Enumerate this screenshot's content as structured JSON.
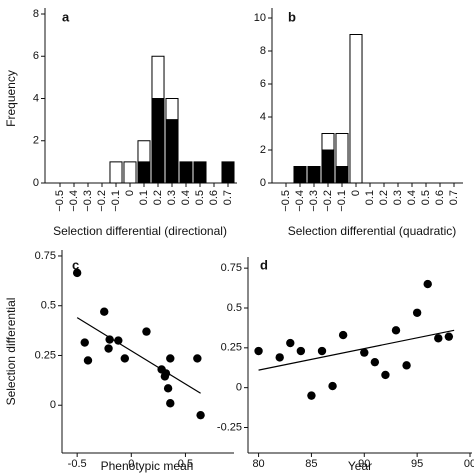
{
  "chart_data": [
    {
      "type": "bar",
      "stacked": true,
      "label": "a",
      "x_label": "Selection differential (directional)",
      "y_label": "Frequency",
      "categories": [
        "−0.5",
        "−0.4",
        "−0.3",
        "−0.2",
        "−0.1",
        "0",
        "0.1",
        "0.2",
        "0.3",
        "0.4",
        "0.5",
        "0.6",
        "0.7"
      ],
      "series": [
        {
          "color": "#000000",
          "values": [
            0,
            0,
            0,
            0,
            0,
            0,
            1,
            4,
            3,
            1,
            1,
            0,
            1
          ]
        },
        {
          "color": "#ffffff",
          "values": [
            0,
            0,
            0,
            0,
            1,
            1,
            1,
            2,
            1,
            0,
            0,
            0,
            0
          ]
        }
      ],
      "ylim": [
        0,
        8
      ],
      "yticks": [
        0,
        2,
        4,
        6,
        8
      ]
    },
    {
      "type": "bar",
      "stacked": true,
      "label": "b",
      "x_label": "Selection differential (quadratic)",
      "categories": [
        "−0.5",
        "−0.4",
        "−0.3",
        "−0.2",
        "−0.1",
        "0",
        "0.1",
        "0.2",
        "0.3",
        "0.4",
        "0.5",
        "0.6",
        "0.7"
      ],
      "series": [
        {
          "color": "#000000",
          "values": [
            0,
            1,
            1,
            2,
            1,
            0,
            0,
            0,
            0,
            0,
            0,
            0,
            0
          ]
        },
        {
          "color": "#ffffff",
          "values": [
            0,
            0,
            0,
            1,
            2,
            9,
            0,
            0,
            0,
            0,
            0,
            0,
            0
          ]
        }
      ],
      "ylim": [
        0,
        10
      ],
      "yticks": [
        0,
        2,
        4,
        6,
        8,
        10
      ]
    },
    {
      "type": "scatter",
      "label": "c",
      "x_label": "Phenotypic mean",
      "y_label": "Selection differential",
      "color": "#000000",
      "x": [
        -0.5,
        -0.43,
        -0.4,
        -0.25,
        -0.21,
        -0.2,
        -0.12,
        -0.06,
        0.14,
        0.28,
        0.31,
        0.32,
        0.36,
        0.34,
        0.36,
        0.61,
        0.64
      ],
      "values": [
        0.665,
        0.315,
        0.225,
        0.47,
        0.285,
        0.33,
        0.325,
        0.235,
        0.37,
        0.18,
        0.145,
        0.16,
        0.235,
        0.085,
        0.01,
        0.235,
        -0.05
      ],
      "trend_line": {
        "x": [
          -0.5,
          0.64
        ],
        "values": [
          0.44,
          0.06
        ]
      },
      "xlim": [
        -0.64,
        0.93
      ],
      "xticks": [
        -0.5,
        0,
        0.5
      ],
      "ylim": [
        -0.24,
        0.78
      ],
      "yticks": [
        0,
        0.25,
        0.5,
        0.75
      ]
    },
    {
      "type": "scatter",
      "label": "d",
      "x_label": "Year",
      "color": "#000000",
      "x": [
        80,
        82,
        83,
        84,
        85,
        86,
        87,
        88,
        90,
        91,
        92,
        93,
        94,
        95,
        96,
        97,
        98
      ],
      "values": [
        0.23,
        0.19,
        0.28,
        0.23,
        -0.05,
        0.23,
        0.01,
        0.33,
        0.22,
        0.16,
        0.08,
        0.36,
        0.14,
        0.47,
        0.65,
        0.31,
        0.32
      ],
      "trend_line": {
        "x": [
          80,
          98.5
        ],
        "values": [
          0.11,
          0.36
        ]
      },
      "xlim": [
        79,
        100
      ],
      "xticks": [
        80,
        85,
        90,
        95,
        {
          "value": 100,
          "label": "00"
        }
      ],
      "ylim": [
        -0.41,
        0.82
      ],
      "yticks": [
        -0.25,
        0,
        0.25,
        0.5,
        0.75
      ]
    }
  ]
}
